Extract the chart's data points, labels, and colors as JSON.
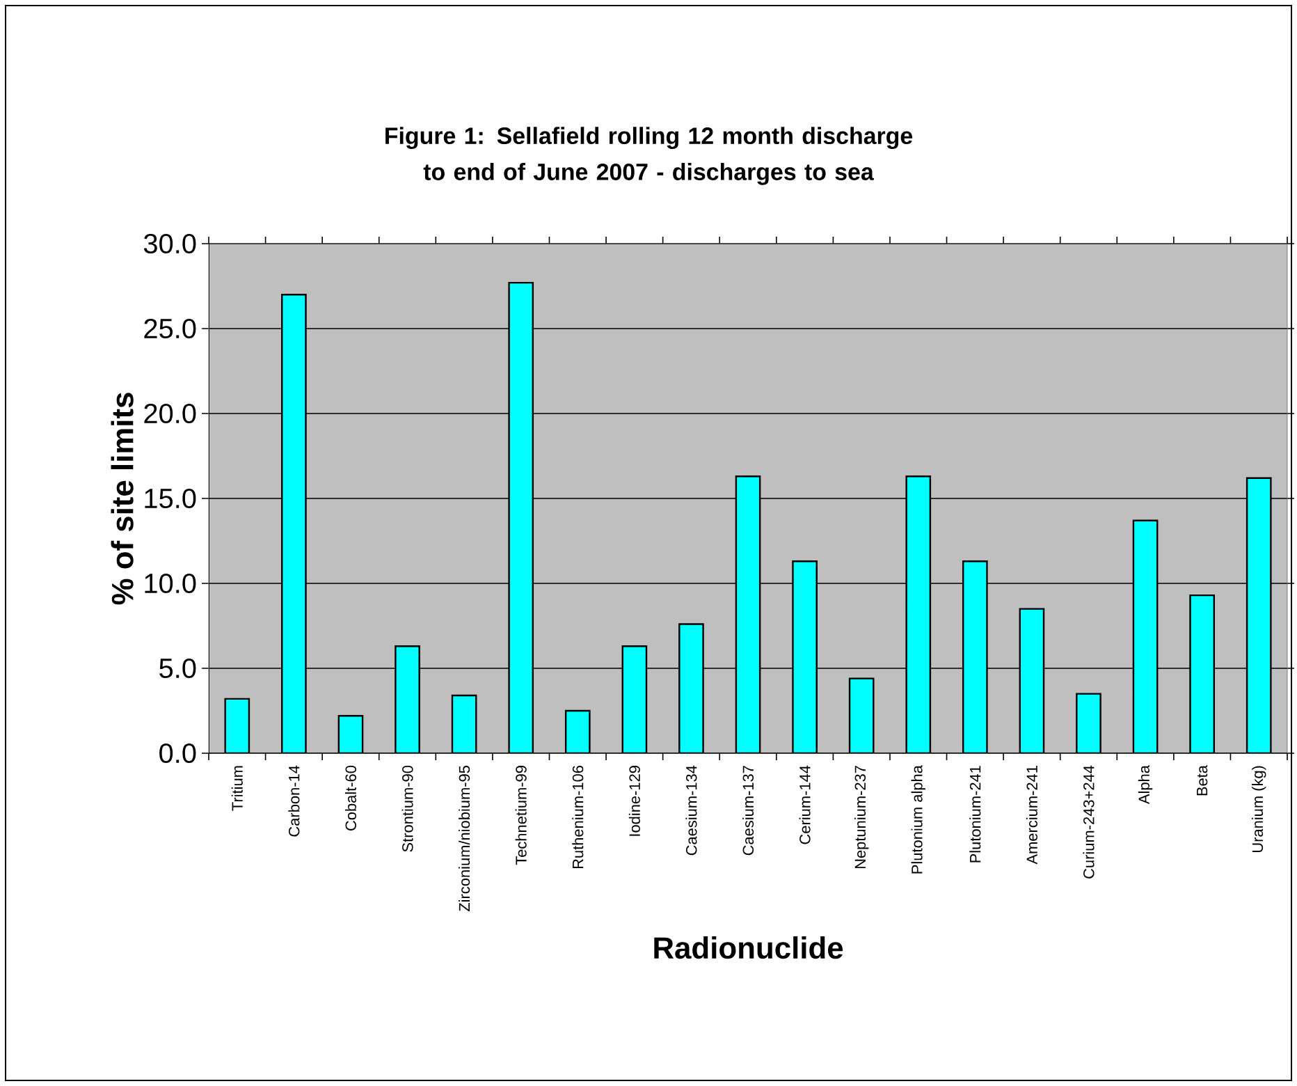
{
  "chart_data": {
    "type": "bar",
    "title": "Figure 1: Sellafield rolling 12 month discharge to end of June 2007 - discharges to sea",
    "xlabel": "Radionuclide",
    "ylabel": "% of site limits",
    "categories": [
      "Tritium",
      "Carbon-14",
      "Cobalt-60",
      "Strontium-90",
      "Zirconium/niobium-95",
      "Technetium-99",
      "Ruthenium-106",
      "Iodine-129",
      "Caesium-134",
      "Caesium-137",
      "Cerium-144",
      "Neptunium-237",
      "Plutonium alpha",
      "Plutonium-241",
      "Amercium-241",
      "Curium-243+244",
      "Alpha",
      "Beta",
      "Uranium (kg)"
    ],
    "values": [
      3.2,
      27.0,
      2.2,
      6.3,
      3.4,
      27.7,
      2.5,
      6.3,
      7.6,
      16.3,
      11.3,
      4.4,
      16.3,
      11.3,
      8.5,
      3.5,
      13.7,
      9.3,
      16.2
    ],
    "color": "#00ffff",
    "ylim": [
      0,
      30
    ],
    "yticks": [
      {
        "value": 0,
        "label": "0.0"
      },
      {
        "value": 5,
        "label": "5.0"
      },
      {
        "value": 10,
        "label": "10.0"
      },
      {
        "value": 15,
        "label": "15.0"
      },
      {
        "value": 20,
        "label": "20.0"
      },
      {
        "value": 25,
        "label": "25.0"
      },
      {
        "value": 30,
        "label": "30.0"
      }
    ],
    "grid": "y"
  }
}
